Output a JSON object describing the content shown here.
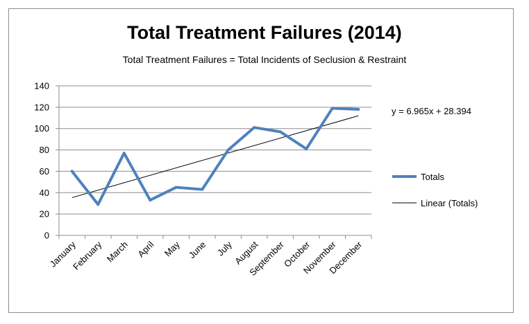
{
  "chart_data": {
    "type": "line",
    "title": "Total Treatment Failures (2014)",
    "subtitle": "Total Treatment Failures = Total Incidents of Seclusion & Restraint",
    "xlabel": "",
    "ylabel": "",
    "categories": [
      "January",
      "February",
      "March",
      "April",
      "May",
      "June",
      "July",
      "August",
      "September",
      "October",
      "November",
      "December"
    ],
    "series": [
      {
        "name": "Totals",
        "color": "#4f81bd",
        "values": [
          60,
          29,
          77,
          33,
          45,
          43,
          80,
          101,
          97,
          81,
          119,
          118
        ]
      },
      {
        "name": "Linear (Totals)",
        "color": "#000000",
        "trendline": true,
        "slope": 6.965,
        "intercept": 28.394
      }
    ],
    "equation": "y = 6.965x + 28.394",
    "ylim": [
      0,
      140
    ],
    "yticks": [
      0,
      20,
      40,
      60,
      80,
      100,
      120,
      140
    ],
    "grid": true,
    "legend": "right"
  }
}
